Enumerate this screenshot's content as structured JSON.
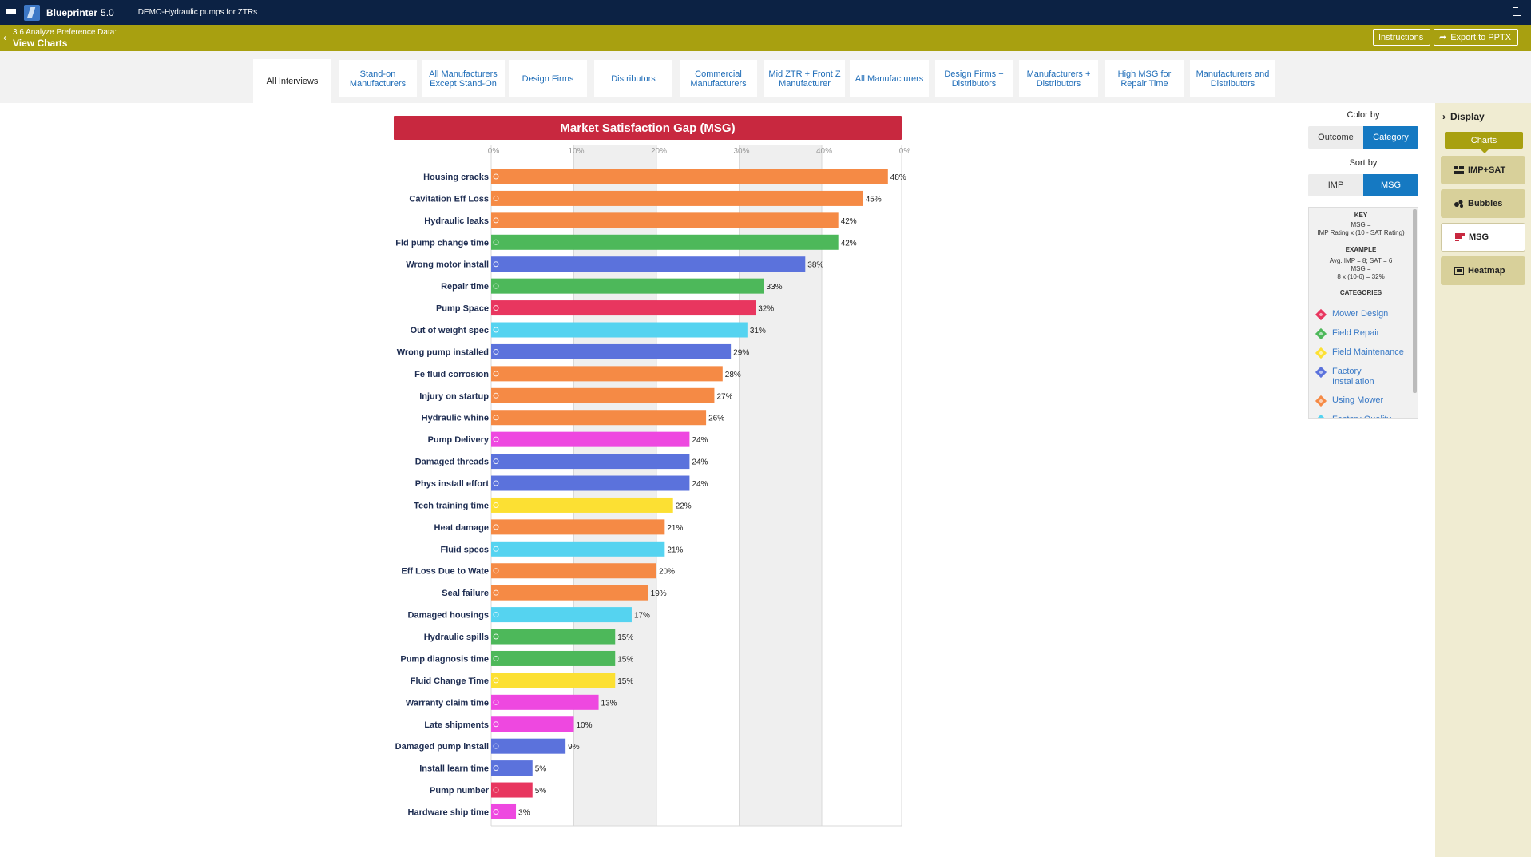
{
  "app": {
    "name": "Blueprinter",
    "version": "5.0",
    "project": "DEMO-Hydraulic pumps for ZTRs"
  },
  "header": {
    "breadcrumb": "3.6 Analyze Preference Data:",
    "title": "View Charts",
    "instructions_label": "Instructions",
    "export_label": "Export to PPTX"
  },
  "tabs": [
    {
      "label": "All Interviews",
      "active": true
    },
    {
      "label": "Stand-on Manufacturers",
      "active": false
    },
    {
      "label": "All Manufacturers Except Stand-On",
      "active": false
    },
    {
      "label": "Design Firms",
      "active": false
    },
    {
      "label": "Distributors",
      "active": false
    },
    {
      "label": "Commercial Manufacturers",
      "active": false
    },
    {
      "label": "Mid ZTR + Front Z Manufacturer",
      "active": false
    },
    {
      "label": "All Manufacturers",
      "active": false
    },
    {
      "label": "Design Firms + Distributors",
      "active": false
    },
    {
      "label": "Manufacturers + Distributors",
      "active": false
    },
    {
      "label": "High MSG for Repair Time",
      "active": false
    },
    {
      "label": "Manufacturers and Distributors",
      "active": false
    }
  ],
  "controls": {
    "color_by_label": "Color by",
    "color_by_options": [
      "Outcome",
      "Category"
    ],
    "color_by_selected": "Category",
    "sort_by_label": "Sort by",
    "sort_by_options": [
      "IMP",
      "MSG"
    ],
    "sort_by_selected": "MSG"
  },
  "key": {
    "key_heading": "KEY",
    "key_line1": "MSG =",
    "key_line2": "IMP Rating x (10 - SAT Rating)",
    "example_heading": "EXAMPLE",
    "example_line1": "Avg. IMP = 8; SAT = 6",
    "example_line2": "MSG =",
    "example_line3": "8 x (10-6) = 32%",
    "categories_heading": "CATEGORIES",
    "categories": [
      {
        "name": "Mower Design",
        "color": "#e8365f"
      },
      {
        "name": "Field Repair",
        "color": "#4db85a"
      },
      {
        "name": "Field Maintenance",
        "color": "#fce033"
      },
      {
        "name": "Factory Installation",
        "color": "#5b72dc"
      },
      {
        "name": "Using Mower",
        "color": "#f58a45"
      },
      {
        "name": "Factory Quality",
        "color": "#55d3f0"
      }
    ]
  },
  "sidebar": {
    "display_label": "Display",
    "charts_label": "Charts",
    "buttons": [
      {
        "label": "IMP+SAT",
        "icon": "imp-sat-icon",
        "active": false
      },
      {
        "label": "Bubbles",
        "icon": "bubbles-icon",
        "active": false
      },
      {
        "label": "MSG",
        "icon": "msg-icon",
        "active": true
      },
      {
        "label": "Heatmap",
        "icon": "heatmap-icon",
        "active": false
      }
    ]
  },
  "chart_data": {
    "type": "bar",
    "orientation": "horizontal",
    "title": "Market Satisfaction Gap (MSG)",
    "xlim": [
      0,
      50
    ],
    "x_ticks": [
      "0%",
      "10%",
      "20%",
      "30%",
      "40%",
      "0%"
    ],
    "categories": [
      "Housing cracks",
      "Cavitation Eff Loss",
      "Hydraulic leaks",
      "Fld pump change time",
      "Wrong motor install",
      "Repair time",
      "Pump Space",
      "Out of weight spec",
      "Wrong pump installed",
      "Fe fluid corrosion",
      "Injury on startup",
      "Hydraulic whine",
      "Pump Delivery",
      "Damaged threads",
      "Phys install effort",
      "Tech training time",
      "Heat damage",
      "Fluid specs",
      "Eff Loss Due to Wate",
      "Seal failure",
      "Damaged housings",
      "Hydraulic spills",
      "Pump diagnosis time",
      "Fluid Change Time",
      "Warranty claim time",
      "Late shipments",
      "Damaged pump install",
      "Install learn time",
      "Pump number",
      "Hardware ship time"
    ],
    "values": [
      48,
      45,
      42,
      42,
      38,
      33,
      32,
      31,
      29,
      28,
      27,
      26,
      24,
      24,
      24,
      22,
      21,
      21,
      20,
      19,
      17,
      15,
      15,
      15,
      13,
      10,
      9,
      5,
      5,
      3
    ],
    "value_labels": [
      "48%",
      "45%",
      "42%",
      "42%",
      "38%",
      "33%",
      "32%",
      "31%",
      "29%",
      "28%",
      "27%",
      "26%",
      "24%",
      "24%",
      "24%",
      "22%",
      "21%",
      "21%",
      "20%",
      "19%",
      "17%",
      "15%",
      "15%",
      "15%",
      "13%",
      "10%",
      "9%",
      "5%",
      "5%",
      "3%"
    ],
    "bar_colors": [
      "#f58a45",
      "#f58a45",
      "#f58a45",
      "#4db85a",
      "#5b72dc",
      "#4db85a",
      "#e8365f",
      "#55d3f0",
      "#5b72dc",
      "#f58a45",
      "#f58a45",
      "#f58a45",
      "#ee48e0",
      "#5b72dc",
      "#5b72dc",
      "#fce033",
      "#f58a45",
      "#55d3f0",
      "#f58a45",
      "#f58a45",
      "#55d3f0",
      "#4db85a",
      "#4db85a",
      "#fce033",
      "#ee48e0",
      "#ee48e0",
      "#5b72dc",
      "#5b72dc",
      "#e8365f",
      "#ee48e0"
    ],
    "grid": true
  }
}
